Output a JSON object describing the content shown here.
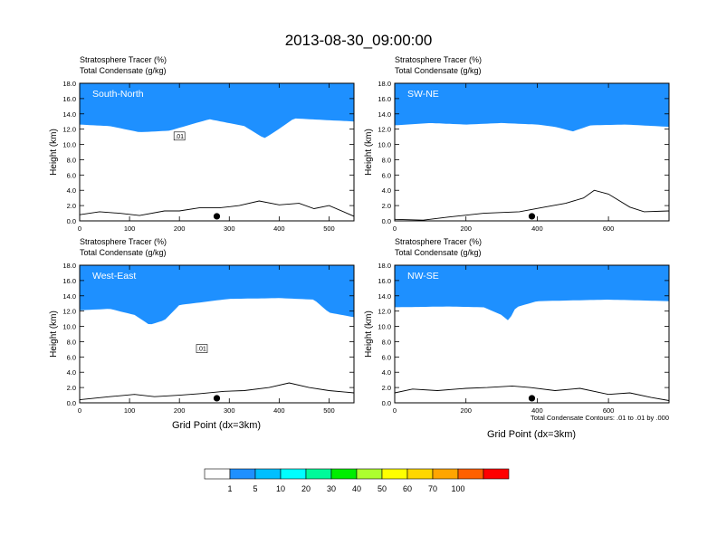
{
  "title": "2013-08-30_09:00:00",
  "ylabel": "Height (km)",
  "xlabel": "Grid Point (dx=3km)",
  "subtitle_line1": "Stratosphere Tracer   (%)",
  "subtitle_line2": "Total Condensate   (g/kg)",
  "contour_note": "Total Condensate Contours: .01 to .01 by .000",
  "chart_data": {
    "type": "heatmap",
    "colorbar": {
      "colors": [
        "#ffffff",
        "#1e90ff",
        "#00bfff",
        "#00ffff",
        "#00fa9a",
        "#00ee00",
        "#adff2f",
        "#ffff00",
        "#ffd700",
        "#ffa500",
        "#ff6000",
        "#ff0000"
      ],
      "labels": [
        "1",
        "5",
        "10",
        "20",
        "30",
        "40",
        "50",
        "60",
        "70",
        "100"
      ]
    },
    "panels": [
      {
        "name": "South-North",
        "xlim": [
          0,
          550
        ],
        "xticks": [
          0,
          100,
          200,
          300,
          400,
          500
        ],
        "ylim": [
          0,
          18
        ],
        "yticks": [
          "0.0",
          "2.0",
          "4.0",
          "6.0",
          "8.0",
          "10.0",
          "12.0",
          "14.0",
          "16.0",
          "18.0"
        ],
        "marker_x": 275,
        "contour_label": ".01",
        "tracer_base": [
          [
            0,
            12.6
          ],
          [
            60,
            12.4
          ],
          [
            120,
            11.6
          ],
          [
            180,
            11.8
          ],
          [
            260,
            13.3
          ],
          [
            330,
            12.4
          ],
          [
            370,
            10.8
          ],
          [
            390,
            11.6
          ],
          [
            430,
            13.4
          ],
          [
            550,
            13.0
          ]
        ],
        "terrain": [
          [
            0,
            0.8
          ],
          [
            40,
            1.2
          ],
          [
            80,
            1.0
          ],
          [
            120,
            0.7
          ],
          [
            170,
            1.3
          ],
          [
            200,
            1.3
          ],
          [
            240,
            1.7
          ],
          [
            280,
            1.7
          ],
          [
            320,
            2.0
          ],
          [
            360,
            2.6
          ],
          [
            400,
            2.1
          ],
          [
            440,
            2.3
          ],
          [
            470,
            1.6
          ],
          [
            500,
            2.0
          ],
          [
            550,
            0.6
          ]
        ]
      },
      {
        "name": "SW-NE",
        "xlim": [
          0,
          770
        ],
        "xticks": [
          0,
          200,
          400,
          600
        ],
        "ylim": [
          0,
          18
        ],
        "yticks": [
          "0.0",
          "2.0",
          "4.0",
          "6.0",
          "8.0",
          "10.0",
          "12.0",
          "14.0",
          "16.0",
          "18.0"
        ],
        "marker_x": 385,
        "contour_label": "",
        "tracer_base": [
          [
            0,
            12.5
          ],
          [
            100,
            12.8
          ],
          [
            200,
            12.6
          ],
          [
            300,
            12.8
          ],
          [
            400,
            12.6
          ],
          [
            450,
            12.3
          ],
          [
            500,
            11.7
          ],
          [
            550,
            12.5
          ],
          [
            650,
            12.6
          ],
          [
            770,
            12.3
          ]
        ],
        "terrain": [
          [
            0,
            0.2
          ],
          [
            80,
            0.1
          ],
          [
            150,
            0.5
          ],
          [
            250,
            1.0
          ],
          [
            350,
            1.2
          ],
          [
            420,
            1.8
          ],
          [
            480,
            2.3
          ],
          [
            530,
            3.0
          ],
          [
            560,
            4.0
          ],
          [
            600,
            3.5
          ],
          [
            660,
            1.8
          ],
          [
            700,
            1.2
          ],
          [
            770,
            1.3
          ]
        ]
      },
      {
        "name": "West-East",
        "xlim": [
          0,
          550
        ],
        "xticks": [
          0,
          100,
          200,
          300,
          400,
          500
        ],
        "ylim": [
          0,
          18
        ],
        "yticks": [
          "0.0",
          "2.0",
          "4.0",
          "6.0",
          "8.0",
          "10.0",
          "12.0",
          "14.0",
          "16.0",
          "18.0"
        ],
        "marker_x": 275,
        "contour_label": ".01",
        "tracer_base": [
          [
            0,
            12.1
          ],
          [
            60,
            12.3
          ],
          [
            110,
            11.5
          ],
          [
            140,
            10.2
          ],
          [
            170,
            10.8
          ],
          [
            200,
            12.8
          ],
          [
            300,
            13.6
          ],
          [
            400,
            13.7
          ],
          [
            470,
            13.5
          ],
          [
            500,
            11.8
          ],
          [
            550,
            11.2
          ]
        ],
        "terrain": [
          [
            0,
            0.4
          ],
          [
            60,
            0.8
          ],
          [
            110,
            1.1
          ],
          [
            150,
            0.8
          ],
          [
            200,
            1.0
          ],
          [
            240,
            1.2
          ],
          [
            290,
            1.5
          ],
          [
            330,
            1.6
          ],
          [
            380,
            2.0
          ],
          [
            420,
            2.6
          ],
          [
            460,
            2.0
          ],
          [
            500,
            1.6
          ],
          [
            550,
            1.3
          ]
        ]
      },
      {
        "name": "NW-SE",
        "xlim": [
          0,
          770
        ],
        "xticks": [
          0,
          200,
          400,
          600
        ],
        "ylim": [
          0,
          18
        ],
        "yticks": [
          "0.0",
          "2.0",
          "4.0",
          "6.0",
          "8.0",
          "10.0",
          "12.0",
          "14.0",
          "16.0",
          "18.0"
        ],
        "marker_x": 385,
        "contour_label": "",
        "tracer_base": [
          [
            0,
            12.5
          ],
          [
            150,
            12.6
          ],
          [
            250,
            12.5
          ],
          [
            300,
            11.5
          ],
          [
            320,
            10.7
          ],
          [
            340,
            12.5
          ],
          [
            400,
            13.3
          ],
          [
            600,
            13.5
          ],
          [
            770,
            13.3
          ]
        ],
        "terrain": [
          [
            0,
            1.3
          ],
          [
            50,
            1.8
          ],
          [
            120,
            1.6
          ],
          [
            200,
            1.9
          ],
          [
            260,
            2.0
          ],
          [
            330,
            2.2
          ],
          [
            380,
            2.0
          ],
          [
            450,
            1.6
          ],
          [
            520,
            1.9
          ],
          [
            600,
            1.1
          ],
          [
            660,
            1.3
          ],
          [
            720,
            0.7
          ],
          [
            770,
            0.3
          ]
        ]
      }
    ]
  }
}
